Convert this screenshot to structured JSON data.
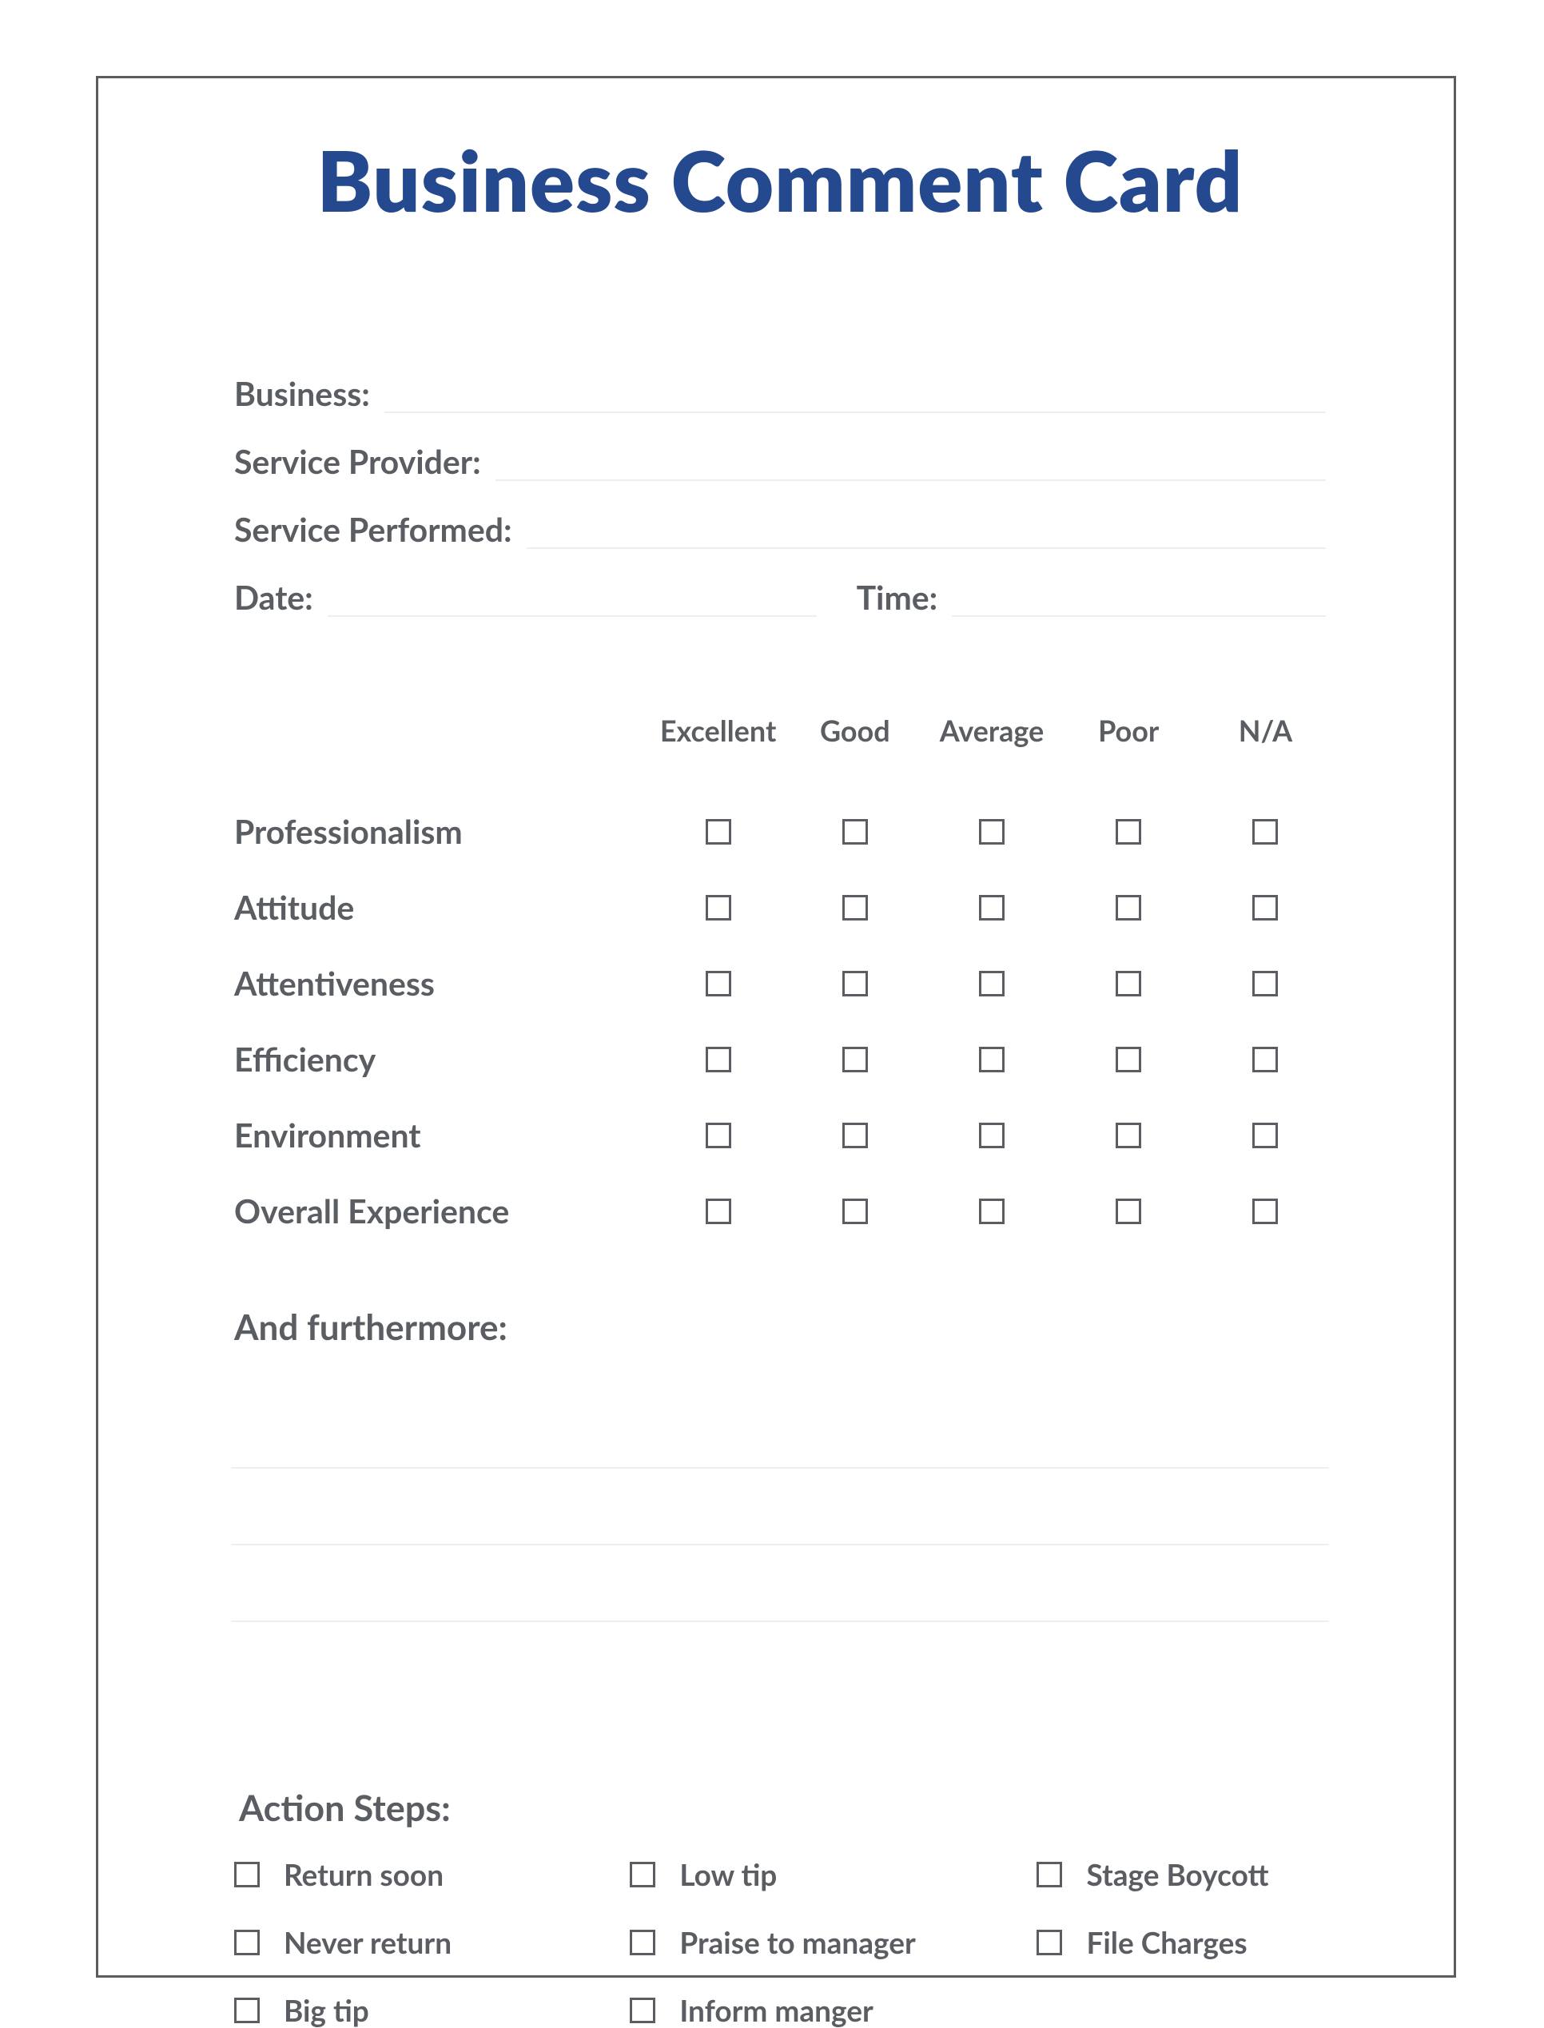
{
  "colors": {
    "title": "#25498f",
    "text": "#5a5e63",
    "border": "#5c5c5c",
    "rule": "#eceef0",
    "background": "#ffffff"
  },
  "title": "Business Comment Card",
  "info": {
    "business_label": "Business:",
    "service_provider_label": "Service Provider:",
    "service_performed_label": "Service Performed:",
    "date_label": "Date:",
    "time_label": "Time:"
  },
  "rating": {
    "columns": [
      "Excellent",
      "Good",
      "Average",
      "Poor",
      "N/A"
    ],
    "rows": [
      "Professionalism",
      "Attitude",
      "Attentiveness",
      "Efficiency",
      "Environment",
      "Overall Experience"
    ]
  },
  "furthermore_label": "And furthermore:",
  "furthermore_line_count": 3,
  "action_steps": {
    "label": "Action Steps:",
    "items": [
      "Return soon",
      "Low tip",
      "Stage Boycott",
      "Never return",
      "Praise to manager",
      "File Charges",
      "Big tip",
      "Inform manger"
    ]
  }
}
